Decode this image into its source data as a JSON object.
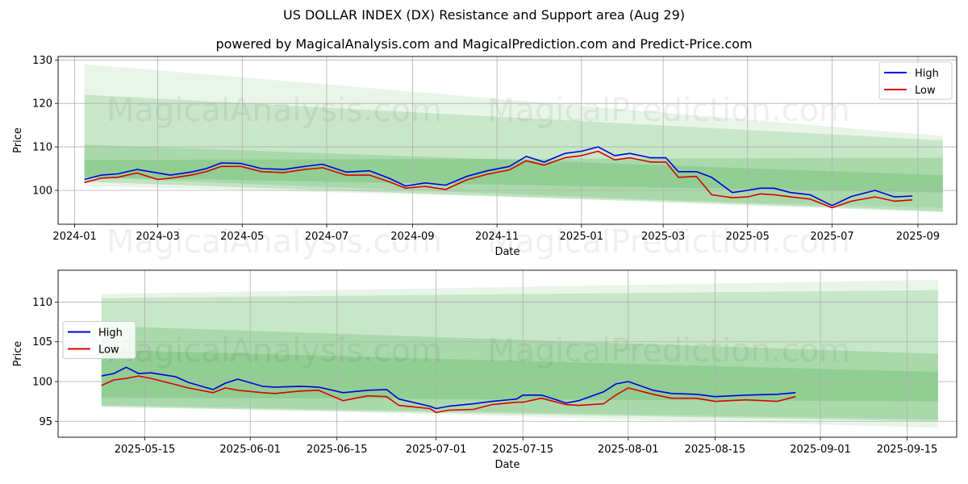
{
  "title": "US DOLLAR INDEX (DX) Resistance and Support area (Aug 29)",
  "subtitle": "powered by MagicalAnalysis.com and MagicalPrediction.com and Predict-Price.com",
  "watermarks": [
    "MagicalAnalysis.com",
    "MagicalPrediction.com"
  ],
  "colors": {
    "high": "#0000dd",
    "low": "#dd0000",
    "band": "#4caf50",
    "grid": "#b0b0b0"
  },
  "chart_data": [
    {
      "type": "line",
      "xlabel": "Date",
      "ylabel": "Price",
      "xlim": [
        "2023-12-20",
        "2025-09-29"
      ],
      "ylim": [
        92.2,
        130.8
      ],
      "x_ticks": [
        "2024-01-01",
        "2024-03-01",
        "2024-05-01",
        "2024-07-01",
        "2024-09-01",
        "2024-11-01",
        "2025-01-01",
        "2025-03-01",
        "2025-05-01",
        "2025-07-01",
        "2025-09-01"
      ],
      "x_tick_labels": [
        "2024-01",
        "2024-03",
        "2024-05",
        "2024-07",
        "2024-09",
        "2024-11",
        "2025-01",
        "2025-03",
        "2025-05",
        "2025-07",
        "2025-09"
      ],
      "y_ticks": [
        100,
        110,
        120,
        130
      ],
      "legend_position": "top-right",
      "grid": true,
      "bands": [
        {
          "x": [
            "2024-01-08",
            "2025-09-19"
          ],
          "upper": [
            129.0,
            112.5
          ],
          "lower": [
            101.0,
            96.0
          ],
          "opacity": 0.13
        },
        {
          "x": [
            "2024-01-08",
            "2025-09-19"
          ],
          "upper": [
            122.0,
            111.5
          ],
          "lower": [
            103.0,
            95.2
          ],
          "opacity": 0.2
        },
        {
          "x": [
            "2024-01-08",
            "2025-09-19"
          ],
          "upper": [
            110.5,
            103.5
          ],
          "lower": [
            102.0,
            95.0
          ],
          "opacity": 0.25
        },
        {
          "x": [
            "2024-01-08",
            "2025-09-19"
          ],
          "upper": [
            107.0,
            107.5
          ],
          "lower": [
            103.0,
            99.5
          ],
          "opacity": 0.25
        }
      ],
      "series": [
        {
          "name": "High",
          "color": "#0000dd",
          "x": [
            "2024-01-08",
            "2024-01-20",
            "2024-02-01",
            "2024-02-15",
            "2024-03-01",
            "2024-03-10",
            "2024-03-25",
            "2024-04-05",
            "2024-04-16",
            "2024-04-30",
            "2024-05-15",
            "2024-05-31",
            "2024-06-15",
            "2024-06-28",
            "2024-07-15",
            "2024-08-01",
            "2024-08-15",
            "2024-08-27",
            "2024-09-10",
            "2024-09-25",
            "2024-10-10",
            "2024-10-25",
            "2024-11-10",
            "2024-11-22",
            "2024-12-05",
            "2024-12-20",
            "2025-01-01",
            "2025-01-13",
            "2025-01-25",
            "2025-02-05",
            "2025-02-20",
            "2025-03-03",
            "2025-03-12",
            "2025-03-25",
            "2025-04-05",
            "2025-04-20",
            "2025-05-01",
            "2025-05-10",
            "2025-05-20",
            "2025-06-01",
            "2025-06-15",
            "2025-07-01",
            "2025-07-15",
            "2025-08-01",
            "2025-08-15",
            "2025-08-28"
          ],
          "values": [
            102.5,
            103.5,
            103.8,
            104.8,
            104.0,
            103.5,
            104.2,
            105.0,
            106.3,
            106.2,
            105.0,
            104.8,
            105.5,
            106.0,
            104.2,
            104.5,
            102.8,
            101.0,
            101.7,
            101.2,
            103.2,
            104.5,
            105.5,
            107.8,
            106.5,
            108.5,
            109.0,
            110.0,
            108.0,
            108.5,
            107.5,
            107.5,
            104.3,
            104.3,
            103.0,
            99.5,
            100.0,
            100.5,
            100.5,
            99.5,
            99.0,
            96.5,
            98.6,
            100.0,
            98.5,
            98.7
          ]
        },
        {
          "name": "Low",
          "color": "#dd0000",
          "x": [
            "2024-01-08",
            "2024-01-20",
            "2024-02-01",
            "2024-02-15",
            "2024-03-01",
            "2024-03-10",
            "2024-03-25",
            "2024-04-05",
            "2024-04-16",
            "2024-04-30",
            "2024-05-15",
            "2024-05-31",
            "2024-06-15",
            "2024-06-28",
            "2024-07-15",
            "2024-08-01",
            "2024-08-15",
            "2024-08-27",
            "2024-09-10",
            "2024-09-25",
            "2024-10-10",
            "2024-10-25",
            "2024-11-10",
            "2024-11-22",
            "2024-12-05",
            "2024-12-20",
            "2025-01-01",
            "2025-01-13",
            "2025-01-25",
            "2025-02-05",
            "2025-02-20",
            "2025-03-03",
            "2025-03-12",
            "2025-03-25",
            "2025-04-05",
            "2025-04-20",
            "2025-05-01",
            "2025-05-10",
            "2025-05-20",
            "2025-06-01",
            "2025-06-15",
            "2025-07-01",
            "2025-07-15",
            "2025-08-01",
            "2025-08-15",
            "2025-08-28"
          ],
          "values": [
            101.8,
            102.8,
            103.0,
            104.0,
            102.5,
            102.8,
            103.5,
            104.3,
            105.5,
            105.5,
            104.3,
            104.1,
            104.8,
            105.2,
            103.5,
            103.5,
            102.0,
            100.5,
            100.9,
            100.2,
            102.4,
            103.7,
            104.7,
            106.8,
            105.8,
            107.5,
            108.0,
            109.0,
            107.0,
            107.5,
            106.5,
            106.5,
            103.0,
            103.2,
            99.0,
            98.3,
            98.5,
            99.2,
            99.0,
            98.5,
            98.0,
            96.0,
            97.5,
            98.5,
            97.5,
            97.8
          ]
        }
      ]
    },
    {
      "type": "line",
      "xlabel": "Date",
      "ylabel": "Price",
      "xlim": [
        "2025-05-01",
        "2025-09-23"
      ],
      "ylim": [
        93.0,
        114.0
      ],
      "x_ticks": [
        "2025-05-15",
        "2025-06-01",
        "2025-06-15",
        "2025-07-01",
        "2025-07-15",
        "2025-08-01",
        "2025-08-15",
        "2025-09-01",
        "2025-09-15"
      ],
      "x_tick_labels": [
        "2025-05-15",
        "2025-06-01",
        "2025-06-15",
        "2025-07-01",
        "2025-07-15",
        "2025-08-01",
        "2025-08-15",
        "2025-09-01",
        "2025-09-15"
      ],
      "y_ticks": [
        95,
        100,
        105,
        110
      ],
      "legend_position": "center-left",
      "grid": true,
      "bands": [
        {
          "x": [
            "2025-05-08",
            "2025-09-20"
          ],
          "upper": [
            111.0,
            112.8
          ],
          "lower": [
            97.0,
            94.2
          ],
          "opacity": 0.13
        },
        {
          "x": [
            "2025-05-08",
            "2025-09-20"
          ],
          "upper": [
            110.5,
            111.5
          ],
          "lower": [
            97.0,
            95.2
          ],
          "opacity": 0.2
        },
        {
          "x": [
            "2025-05-08",
            "2025-09-20"
          ],
          "upper": [
            107.0,
            103.5
          ],
          "lower": [
            96.8,
            95.0
          ],
          "opacity": 0.25
        },
        {
          "x": [
            "2025-05-08",
            "2025-09-20"
          ],
          "upper": [
            104.0,
            101.2
          ],
          "lower": [
            98.0,
            97.5
          ],
          "opacity": 0.25
        }
      ],
      "series": [
        {
          "name": "High",
          "color": "#0000dd",
          "x": [
            "2025-05-08",
            "2025-05-10",
            "2025-05-12",
            "2025-05-14",
            "2025-05-16",
            "2025-05-20",
            "2025-05-22",
            "2025-05-26",
            "2025-05-28",
            "2025-05-30",
            "2025-06-03",
            "2025-06-05",
            "2025-06-09",
            "2025-06-12",
            "2025-06-16",
            "2025-06-20",
            "2025-06-23",
            "2025-06-25",
            "2025-06-30",
            "2025-07-01",
            "2025-07-03",
            "2025-07-07",
            "2025-07-10",
            "2025-07-14",
            "2025-07-15",
            "2025-07-18",
            "2025-07-22",
            "2025-07-24",
            "2025-07-28",
            "2025-07-30",
            "2025-08-01",
            "2025-08-05",
            "2025-08-08",
            "2025-08-12",
            "2025-08-15",
            "2025-08-20",
            "2025-08-25",
            "2025-08-28"
          ],
          "values": [
            100.7,
            101.0,
            101.8,
            101.0,
            101.1,
            100.6,
            99.9,
            99.0,
            99.8,
            100.3,
            99.4,
            99.3,
            99.4,
            99.3,
            98.6,
            98.9,
            99.0,
            97.8,
            96.9,
            96.6,
            96.9,
            97.2,
            97.5,
            97.8,
            98.3,
            98.3,
            97.3,
            97.6,
            98.7,
            99.7,
            100.0,
            98.9,
            98.5,
            98.4,
            98.1,
            98.3,
            98.4,
            98.6
          ]
        },
        {
          "name": "Low",
          "color": "#dd0000",
          "x": [
            "2025-05-08",
            "2025-05-10",
            "2025-05-12",
            "2025-05-14",
            "2025-05-16",
            "2025-05-20",
            "2025-05-22",
            "2025-05-26",
            "2025-05-28",
            "2025-05-30",
            "2025-06-03",
            "2025-06-05",
            "2025-06-09",
            "2025-06-12",
            "2025-06-16",
            "2025-06-20",
            "2025-06-23",
            "2025-06-25",
            "2025-06-30",
            "2025-07-01",
            "2025-07-03",
            "2025-07-07",
            "2025-07-10",
            "2025-07-14",
            "2025-07-15",
            "2025-07-18",
            "2025-07-22",
            "2025-07-24",
            "2025-07-28",
            "2025-07-30",
            "2025-08-01",
            "2025-08-05",
            "2025-08-08",
            "2025-08-12",
            "2025-08-15",
            "2025-08-20",
            "2025-08-25",
            "2025-08-28"
          ],
          "values": [
            99.5,
            100.2,
            100.4,
            100.7,
            100.4,
            99.6,
            99.2,
            98.6,
            99.2,
            98.9,
            98.6,
            98.5,
            98.8,
            98.9,
            97.6,
            98.2,
            98.1,
            97.0,
            96.6,
            96.1,
            96.4,
            96.5,
            97.1,
            97.4,
            97.4,
            97.9,
            97.1,
            97.0,
            97.2,
            98.3,
            99.2,
            98.4,
            97.9,
            97.9,
            97.5,
            97.7,
            97.5,
            98.1
          ]
        }
      ]
    }
  ]
}
